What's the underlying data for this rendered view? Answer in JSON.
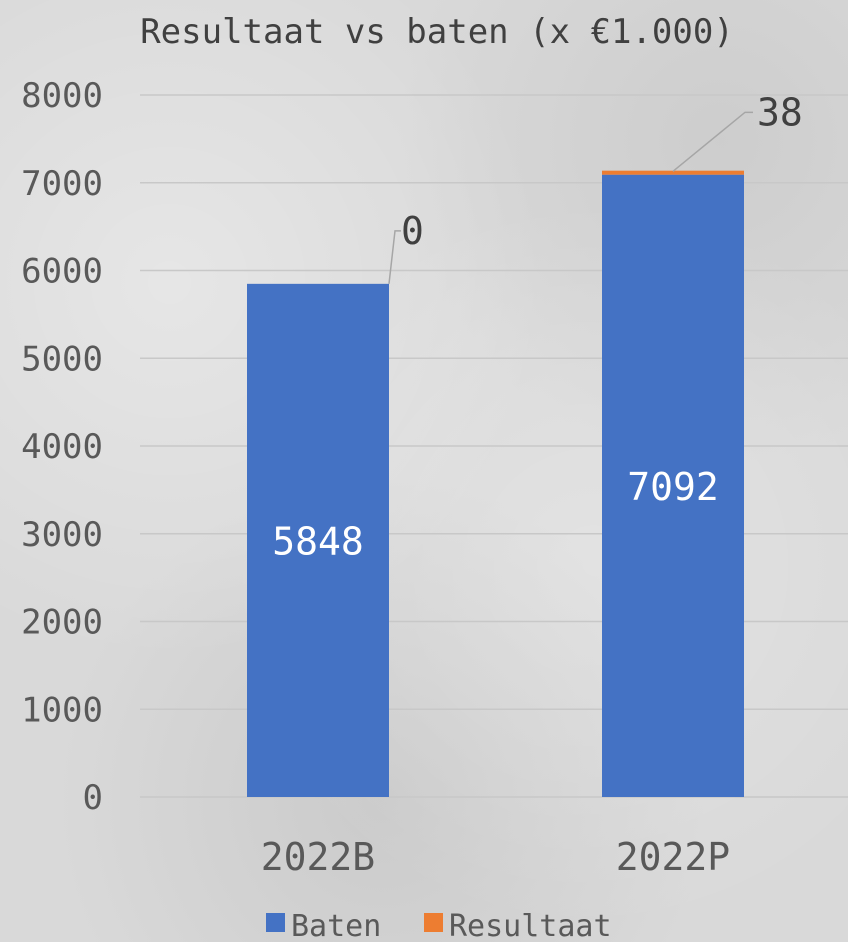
{
  "chart_data": {
    "type": "bar",
    "stacked": true,
    "title": "Resultaat vs baten (x €1.000)",
    "categories": [
      "2022B",
      "2022P"
    ],
    "series": [
      {
        "name": "Baten",
        "values": [
          5848,
          7092
        ],
        "color": "#4472c4",
        "data_labels": [
          "5848",
          "7092"
        ]
      },
      {
        "name": "Resultaat",
        "values": [
          0,
          38
        ],
        "color": "#ed7d31",
        "data_labels": [
          "0",
          "38"
        ]
      }
    ],
    "ylim": [
      0,
      8000
    ],
    "yticks": [
      0,
      1000,
      2000,
      3000,
      4000,
      5000,
      6000,
      7000,
      8000
    ],
    "grid": true,
    "legend_position": "bottom"
  }
}
